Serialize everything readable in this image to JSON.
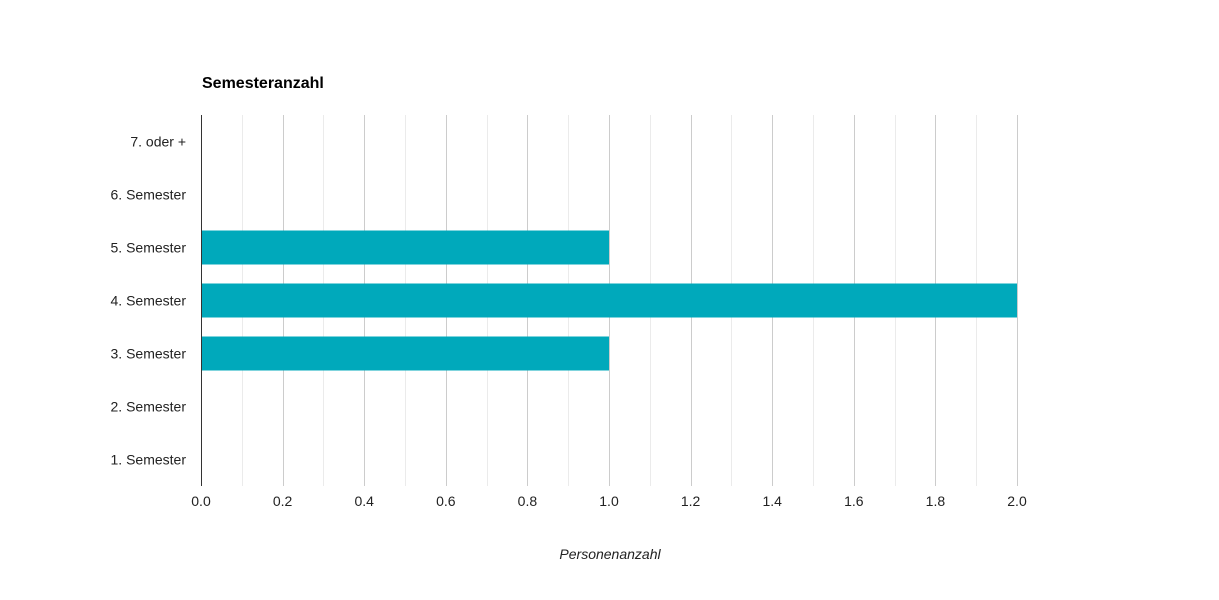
{
  "chart_data": {
    "type": "bar",
    "orientation": "horizontal",
    "title": "Semesteranzahl",
    "xlabel": "Personenanzahl",
    "ylabel": "",
    "categories": [
      "7. oder +",
      "6. Semester",
      "5. Semester",
      "4. Semester",
      "3. Semester",
      "2. Semester",
      "1. Semester"
    ],
    "values": [
      0,
      0,
      1,
      2,
      1,
      0,
      0
    ],
    "xlim": [
      0,
      2.0
    ],
    "x_ticks": [
      "0.0",
      "0.2",
      "0.4",
      "0.6",
      "0.8",
      "1.0",
      "1.2",
      "1.4",
      "1.6",
      "1.8",
      "2.0"
    ],
    "grid": true,
    "legend": "none",
    "bar_color": "#00a9bb",
    "grid_color_major": "#cccccc",
    "grid_color_minor": "#ebebeb",
    "axis_color": "#333333"
  }
}
